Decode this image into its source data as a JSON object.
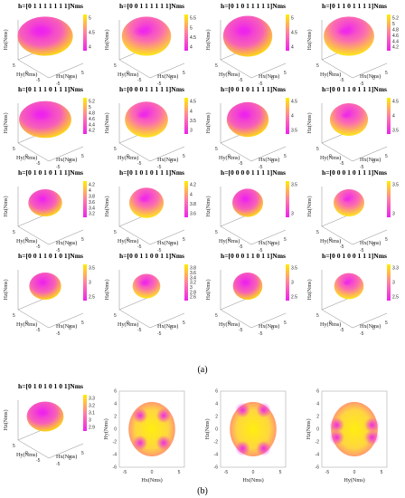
{
  "figure": {
    "sub_labels": [
      "(a)",
      "(b)"
    ]
  },
  "colors": {
    "low": "#ee22ee",
    "high": "#ffee00"
  },
  "chart_data": [
    {
      "type": "surface3d",
      "title": "h=[0 1 1 1 1 1 1 1]Nms",
      "xlabel": "Hx(Nms)",
      "ylabel": "Hy(Nms)",
      "zlabel": "Hz(Nms)",
      "colorbar_ticks": [
        "5",
        "4.5",
        "4"
      ],
      "shape": {
        "rx": 0.9,
        "ry": 0.72,
        "pink": 0.62
      }
    },
    {
      "type": "surface3d",
      "title": "h=[0 0 1 1 1 1 1 1]Nms",
      "xlabel": "Hx(Nms)",
      "ylabel": "Hy(Nms)",
      "zlabel": "Hz(Nms)",
      "colorbar_ticks": [
        "5.5",
        "5",
        "4.5",
        "4"
      ],
      "shape": {
        "rx": 0.8,
        "ry": 0.72,
        "pink": 0.55
      }
    },
    {
      "type": "surface3d",
      "title": "h=[0 1 0 1 1 1 1 1]Nms",
      "xlabel": "Hx(Nms)",
      "ylabel": "Hy(Nms)",
      "zlabel": "Hz(Nms)",
      "colorbar_ticks": [
        "5",
        "4.5",
        "4"
      ],
      "shape": {
        "rx": 0.8,
        "ry": 0.75,
        "pink": 0.5
      }
    },
    {
      "type": "surface3d",
      "title": "h=[0 1 1 0 1 1 1 1]Nms",
      "xlabel": "Hx(Nms)",
      "ylabel": "Hy(Nms)",
      "zlabel": "Hz(Nms)",
      "colorbar_ticks": [
        "5.2",
        "5",
        "4.8",
        "4.6",
        "4.4",
        "4.2"
      ],
      "shape": {
        "rx": 0.82,
        "ry": 0.72,
        "pink": 0.5
      }
    },
    {
      "type": "surface3d",
      "title": "h=[0 1 1 1 0 1 1 1]Nms",
      "xlabel": "Hx(Nms)",
      "ylabel": "Hy(Nms)",
      "zlabel": "Hz(Nms)",
      "colorbar_ticks": [
        "5.2",
        "5",
        "4.8",
        "4.6",
        "4.4",
        "4.2"
      ],
      "shape": {
        "rx": 0.85,
        "ry": 0.68,
        "pink": 0.55
      }
    },
    {
      "type": "surface3d",
      "title": "h=[0 0 0 1 1 1 1 1]Nms",
      "xlabel": "Hx(Nms)",
      "ylabel": "Hy(Nms)",
      "zlabel": "Hz(Nms)",
      "colorbar_ticks": [
        "4.5",
        "4",
        "3.5",
        "3"
      ],
      "shape": {
        "rx": 0.7,
        "ry": 0.66,
        "pink": 0.45
      }
    },
    {
      "type": "surface3d",
      "title": "h=[0 0 1 0 1 1 1 1]Nms",
      "xlabel": "Hx(Nms)",
      "ylabel": "Hy(Nms)",
      "zlabel": "Hz(Nms)",
      "colorbar_ticks": [
        "4.5",
        "4",
        "3.5"
      ],
      "shape": {
        "rx": 0.68,
        "ry": 0.64,
        "pink": 0.45
      }
    },
    {
      "type": "surface3d",
      "title": "h=[0 0 1 1 0 1 1 1]Nms",
      "xlabel": "Hx(Nms)",
      "ylabel": "Hy(Nms)",
      "zlabel": "Hz(Nms)",
      "colorbar_ticks": [
        "4.5",
        "4",
        "3.5"
      ],
      "shape": {
        "rx": 0.62,
        "ry": 0.6,
        "pink": 0.4
      }
    },
    {
      "type": "surface3d",
      "title": "h=[0 1 0 1 0 1 1 1]Nms",
      "xlabel": "Hx(Nms)",
      "ylabel": "Hy(Nms)",
      "zlabel": "Hz(Nms)",
      "colorbar_ticks": [
        "4.2",
        "4",
        "3.8",
        "3.6",
        "3.4",
        "3.2"
      ],
      "shape": {
        "rx": 0.55,
        "ry": 0.5,
        "pink": 0.35
      }
    },
    {
      "type": "surface3d",
      "title": "h=[0 1 0 1 0 1 1 1]Nms",
      "xlabel": "Hx(Nms)",
      "ylabel": "Hy(Nms)",
      "zlabel": "Hz(Nms)",
      "colorbar_ticks": [
        "4.2",
        "4",
        "3.8",
        "3.6"
      ],
      "shape": {
        "rx": 0.56,
        "ry": 0.56,
        "pink": 0.5
      }
    },
    {
      "type": "surface3d",
      "title": "h=[0 0 0 0 1 1 1 1]Nms",
      "xlabel": "Hx(Nms)",
      "ylabel": "Hy(Nms)",
      "zlabel": "Hz(Nms)",
      "colorbar_ticks": [
        "3.5",
        "3"
      ],
      "shape": {
        "rx": 0.5,
        "ry": 0.52,
        "pink": 0.4
      }
    },
    {
      "type": "surface3d",
      "title": "h=[0 0 0 1 0 1 1 1]Nms",
      "xlabel": "Hx(Nms)",
      "ylabel": "Hy(Nms)",
      "zlabel": "Hz(Nms)",
      "colorbar_ticks": [
        "3.5",
        "3"
      ],
      "shape": {
        "rx": 0.5,
        "ry": 0.5,
        "pink": 0.38
      }
    },
    {
      "type": "surface3d",
      "title": "h=[0 0 1 1 0 1 0 1]Nms",
      "xlabel": "Hx(Nms)",
      "ylabel": "Hy(Nms)",
      "zlabel": "Hz(Nms)",
      "colorbar_ticks": [
        "3.5",
        "3",
        "2.5"
      ],
      "shape": {
        "rx": 0.52,
        "ry": 0.5,
        "pink": 0.4
      }
    },
    {
      "type": "surface3d",
      "title": "h=[0 0 1 1 0 0 1 1]Nms",
      "xlabel": "Hx(Nms)",
      "ylabel": "Hy(Nms)",
      "zlabel": "Hz(Nms)",
      "colorbar_ticks": [
        "3.8",
        "3.6",
        "3.4",
        "3.2",
        "3",
        "2.8",
        "2.6"
      ],
      "shape": {
        "rx": 0.45,
        "ry": 0.45,
        "pink": 0.55
      }
    },
    {
      "type": "surface3d",
      "title": "h=[0 0 0 1 1 0 1 1]Nms",
      "xlabel": "Hx(Nms)",
      "ylabel": "Hy(Nms)",
      "zlabel": "Hz(Nms)",
      "colorbar_ticks": [
        "3.5",
        "3",
        "2.5"
      ],
      "shape": {
        "rx": 0.48,
        "ry": 0.5,
        "pink": 0.5
      }
    },
    {
      "type": "surface3d",
      "title": "h=[0 0 1 0 0 1 1 1]Nms",
      "xlabel": "Hx(Nms)",
      "ylabel": "Hy(Nms)",
      "zlabel": "Hz(Nms)",
      "colorbar_ticks": [
        "3.3",
        "3",
        "2.5"
      ],
      "shape": {
        "rx": 0.48,
        "ry": 0.48,
        "pink": 0.4
      }
    },
    {
      "type": "surface3d",
      "title": "h=[0 1 0 1 0 1 0 1]Nms",
      "xlabel": "Hx(Nms)",
      "ylabel": "Hy(Nms)",
      "zlabel": "Hz(Nms)",
      "colorbar_ticks": [
        "3.3",
        "3.2",
        "3.1",
        "3",
        "2.9"
      ],
      "shape": {
        "rx": 0.6,
        "ry": 0.55,
        "pink": 0.5
      }
    },
    {
      "type": "surface2d",
      "title": "",
      "xlabel": "Hx(Nms)",
      "ylabel": "Hy(Nms)",
      "xlim": [
        -6,
        6
      ],
      "ylim": [
        -6,
        6
      ],
      "xticks": [
        "-5",
        "0",
        "5"
      ],
      "yticks": [
        "6",
        "4",
        "2",
        "0",
        "-2",
        "-4",
        "-6"
      ],
      "shape": {
        "radius": 4.3,
        "pattern": "four-corner-pink"
      }
    },
    {
      "type": "surface2d",
      "title": "",
      "xlabel": "Hx(Nms)",
      "ylabel": "Hz(Nms)",
      "xlim": [
        -6,
        6
      ],
      "ylim": [
        -6,
        6
      ],
      "xticks": [
        "-5",
        "0",
        "5"
      ],
      "yticks": [
        "6",
        "4",
        "2",
        "0",
        "-2",
        "-4",
        "-6"
      ],
      "shape": {
        "radius": 4.3,
        "pattern": "pink-top-bottom"
      }
    },
    {
      "type": "surface2d",
      "title": "",
      "xlabel": "Hy(Nms)",
      "ylabel": "Hz(Nms)",
      "xlim": [
        -6,
        6
      ],
      "ylim": [
        -6,
        6
      ],
      "xticks": [
        "-5",
        "0",
        "5"
      ],
      "yticks": [
        "6",
        "4",
        "2",
        "0",
        "-2",
        "-4",
        "-6"
      ],
      "shape": {
        "radius": 4.3,
        "pattern": "pink-sides"
      }
    }
  ]
}
